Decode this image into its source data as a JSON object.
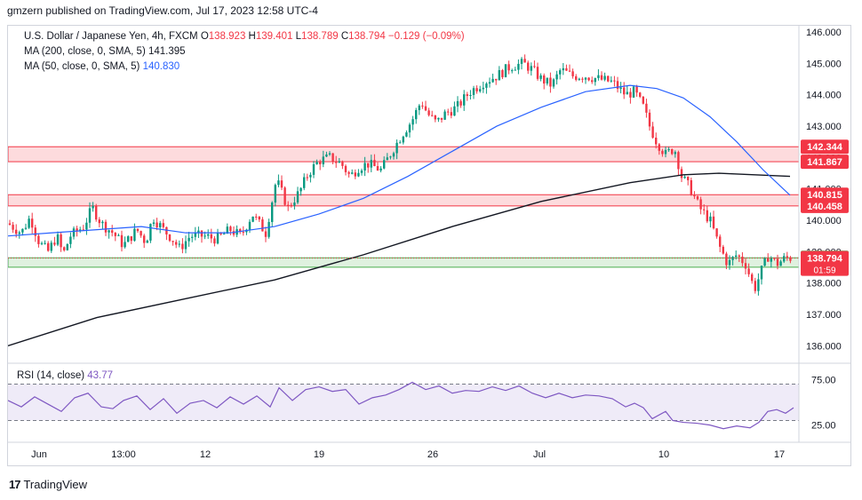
{
  "publisher": "gmzern published on TradingView.com, Jul 17, 2023 12:58 UTC-4",
  "legend": {
    "symbol": "U.S. Dollar / Japanese Yen, 4h, FXCM",
    "o_label": "O",
    "o": "138.923",
    "h_label": "H",
    "h": "139.401",
    "l_label": "L",
    "l": "138.789",
    "c_label": "C",
    "c": "138.794",
    "change": "−0.129 (−0.09%)",
    "ma200_label": "MA (200, close, 0, SMA, 5)",
    "ma200_value": "141.395",
    "ma50_label": "MA (50, close, 0, SMA, 5)",
    "ma50_value": "140.830",
    "rsi_label": "RSI (14, close)",
    "rsi_value": "43.77"
  },
  "logo": "TradingView",
  "colors": {
    "up": "#089981",
    "down": "#f23645",
    "ma200": "#131722",
    "ma50": "#2962ff",
    "rsi": "#7e57c2",
    "zone_red": "#f23645",
    "zone_green": "#4caf50"
  },
  "chart_data": {
    "type": "candlestick",
    "price_axis_ticks": [
      "146.000",
      "145.000",
      "144.000",
      "143.000",
      "142.000",
      "141.000",
      "140.000",
      "139.000",
      "138.000",
      "137.000",
      "136.000"
    ],
    "ylim": [
      135.5,
      146.2
    ],
    "time_axis_ticks": [
      "Jun",
      "13:00",
      "12",
      "19",
      "26",
      "Jul",
      "10",
      "17"
    ],
    "zones": [
      {
        "type": "resistance",
        "top": 142.344,
        "bottom": 141.867,
        "top_label": "142.344",
        "bottom_label": "141.867"
      },
      {
        "type": "resistance",
        "top": 140.815,
        "bottom": 140.458,
        "top_label": "140.815",
        "bottom_label": "140.458"
      },
      {
        "type": "support",
        "top": 138.804,
        "bottom": 138.504,
        "top_label": "138.804",
        "bottom_label": "138.504"
      }
    ],
    "current_price": {
      "value": 138.794,
      "label": "138.794",
      "countdown": "01:59"
    },
    "price_path": [
      [
        0,
        139.9
      ],
      [
        15,
        139.6
      ],
      [
        25,
        140.1
      ],
      [
        35,
        139.3
      ],
      [
        45,
        139.0
      ],
      [
        55,
        139.5
      ],
      [
        62,
        138.9
      ],
      [
        70,
        139.5
      ],
      [
        85,
        139.8
      ],
      [
        95,
        140.4
      ],
      [
        105,
        139.9
      ],
      [
        118,
        139.6
      ],
      [
        130,
        139.2
      ],
      [
        145,
        139.7
      ],
      [
        155,
        139.3
      ],
      [
        163,
        140.1
      ],
      [
        175,
        139.7
      ],
      [
        185,
        139.4
      ],
      [
        193,
        139.1
      ],
      [
        205,
        139.5
      ],
      [
        220,
        139.5
      ],
      [
        235,
        139.4
      ],
      [
        250,
        139.7
      ],
      [
        262,
        139.5
      ],
      [
        275,
        140.2
      ],
      [
        290,
        139.6
      ],
      [
        302,
        141.3
      ],
      [
        315,
        140.4
      ],
      [
        328,
        140.9
      ],
      [
        338,
        141.5
      ],
      [
        350,
        141.9
      ],
      [
        362,
        142.0
      ],
      [
        375,
        141.8
      ],
      [
        385,
        141.4
      ],
      [
        395,
        141.7
      ],
      [
        405,
        141.8
      ],
      [
        420,
        141.6
      ],
      [
        432,
        142.2
      ],
      [
        445,
        142.8
      ],
      [
        455,
        143.2
      ],
      [
        465,
        143.8
      ],
      [
        472,
        143.4
      ],
      [
        482,
        143.1
      ],
      [
        492,
        143.4
      ],
      [
        505,
        143.6
      ],
      [
        520,
        144.1
      ],
      [
        535,
        144.4
      ],
      [
        550,
        144.6
      ],
      [
        565,
        144.9
      ],
      [
        580,
        145.0
      ],
      [
        590,
        144.8
      ],
      [
        600,
        144.5
      ],
      [
        612,
        144.3
      ],
      [
        622,
        144.8
      ],
      [
        635,
        144.6
      ],
      [
        650,
        144.6
      ],
      [
        665,
        144.5
      ],
      [
        680,
        144.4
      ],
      [
        695,
        144.0
      ],
      [
        705,
        144.1
      ],
      [
        715,
        143.6
      ],
      [
        722,
        143.0
      ],
      [
        730,
        142.5
      ],
      [
        740,
        142.1
      ],
      [
        750,
        142.3
      ],
      [
        758,
        141.4
      ],
      [
        768,
        141.0
      ],
      [
        778,
        140.4
      ],
      [
        790,
        140.0
      ],
      [
        800,
        139.2
      ],
      [
        810,
        138.6
      ],
      [
        820,
        138.9
      ],
      [
        830,
        138.6
      ],
      [
        840,
        137.8
      ],
      [
        848,
        138.4
      ],
      [
        856,
        138.9
      ],
      [
        865,
        138.6
      ],
      [
        875,
        138.8
      ],
      [
        884,
        138.8
      ]
    ],
    "ma200_path": [
      [
        0,
        136.0
      ],
      [
        100,
        136.9
      ],
      [
        200,
        137.5
      ],
      [
        300,
        138.1
      ],
      [
        400,
        138.9
      ],
      [
        500,
        139.8
      ],
      [
        600,
        140.6
      ],
      [
        700,
        141.2
      ],
      [
        760,
        141.45
      ],
      [
        800,
        141.5
      ],
      [
        840,
        141.45
      ],
      [
        880,
        141.4
      ]
    ],
    "ma50_path": [
      [
        0,
        139.5
      ],
      [
        50,
        139.6
      ],
      [
        100,
        139.7
      ],
      [
        150,
        139.8
      ],
      [
        200,
        139.6
      ],
      [
        250,
        139.6
      ],
      [
        300,
        139.8
      ],
      [
        350,
        140.2
      ],
      [
        400,
        140.7
      ],
      [
        450,
        141.4
      ],
      [
        500,
        142.2
      ],
      [
        550,
        143.0
      ],
      [
        600,
        143.6
      ],
      [
        650,
        144.1
      ],
      [
        700,
        144.3
      ],
      [
        730,
        144.2
      ],
      [
        760,
        143.9
      ],
      [
        790,
        143.3
      ],
      [
        820,
        142.5
      ],
      [
        850,
        141.6
      ],
      [
        880,
        140.8
      ]
    ],
    "rsi": {
      "ticks": [
        "75.00",
        "25.00"
      ],
      "ylim": [
        10,
        90
      ],
      "band": [
        30,
        70
      ],
      "path": [
        [
          0,
          52
        ],
        [
          15,
          45
        ],
        [
          30,
          56
        ],
        [
          45,
          48
        ],
        [
          60,
          40
        ],
        [
          75,
          55
        ],
        [
          90,
          60
        ],
        [
          105,
          45
        ],
        [
          118,
          43
        ],
        [
          130,
          52
        ],
        [
          145,
          57
        ],
        [
          160,
          42
        ],
        [
          175,
          54
        ],
        [
          190,
          38
        ],
        [
          205,
          49
        ],
        [
          220,
          52
        ],
        [
          235,
          44
        ],
        [
          250,
          56
        ],
        [
          265,
          48
        ],
        [
          280,
          57
        ],
        [
          295,
          45
        ],
        [
          305,
          66
        ],
        [
          320,
          52
        ],
        [
          335,
          64
        ],
        [
          350,
          67
        ],
        [
          365,
          62
        ],
        [
          380,
          64
        ],
        [
          395,
          48
        ],
        [
          410,
          55
        ],
        [
          425,
          58
        ],
        [
          440,
          64
        ],
        [
          455,
          72
        ],
        [
          470,
          64
        ],
        [
          485,
          68
        ],
        [
          500,
          60
        ],
        [
          515,
          63
        ],
        [
          530,
          62
        ],
        [
          545,
          67
        ],
        [
          560,
          63
        ],
        [
          575,
          68
        ],
        [
          590,
          60
        ],
        [
          605,
          55
        ],
        [
          620,
          60
        ],
        [
          635,
          55
        ],
        [
          650,
          58
        ],
        [
          665,
          57
        ],
        [
          680,
          54
        ],
        [
          695,
          45
        ],
        [
          705,
          49
        ],
        [
          715,
          44
        ],
        [
          725,
          32
        ],
        [
          740,
          40
        ],
        [
          748,
          30
        ],
        [
          760,
          28
        ],
        [
          775,
          27
        ],
        [
          790,
          25
        ],
        [
          805,
          21
        ],
        [
          820,
          24
        ],
        [
          835,
          22
        ],
        [
          845,
          28
        ],
        [
          855,
          40
        ],
        [
          865,
          42
        ],
        [
          875,
          38
        ],
        [
          884,
          44
        ]
      ]
    }
  }
}
